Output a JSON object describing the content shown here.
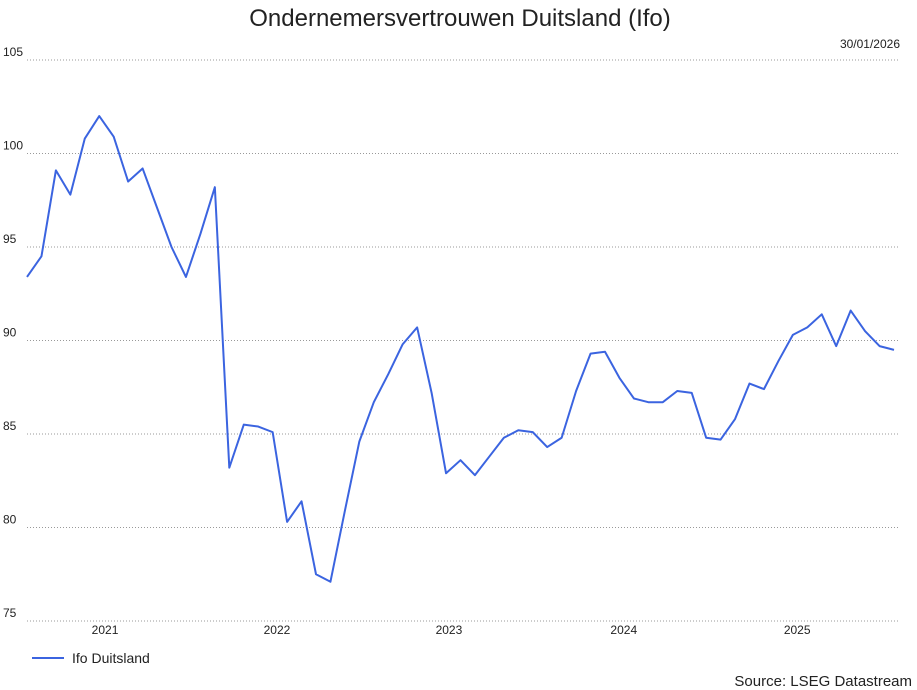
{
  "chart_data": {
    "type": "line",
    "title": "Ondernemersvertrouwen Duitsland (Ifo)",
    "date": "30/01/2026",
    "source": "Source: LSEG Datastream",
    "x": [
      0,
      1,
      2,
      3,
      4,
      5,
      6,
      7,
      8,
      9,
      10,
      11,
      12,
      13,
      14,
      15,
      16,
      17,
      18,
      19,
      20,
      21,
      22,
      23,
      24,
      25,
      26,
      27,
      28,
      29,
      30,
      31,
      32,
      33,
      34,
      35,
      36,
      37,
      38,
      39,
      40,
      41,
      42,
      43,
      44,
      45,
      46,
      47,
      48,
      49,
      50,
      51,
      52,
      53,
      54,
      55,
      56,
      57,
      58,
      59,
      60
    ],
    "series": [
      {
        "name": "Ifo Duitsland",
        "color": "#3b64e0",
        "values": [
          93.4,
          94.5,
          99.1,
          97.8,
          100.8,
          102.0,
          100.9,
          98.5,
          99.2,
          97.1,
          95.0,
          93.4,
          95.7,
          98.2,
          83.2,
          85.5,
          85.4,
          85.1,
          80.3,
          81.4,
          77.5,
          77.1,
          80.9,
          84.6,
          86.7,
          88.2,
          89.8,
          90.7,
          87.2,
          82.9,
          83.6,
          82.8,
          83.8,
          84.8,
          85.2,
          85.1,
          84.3,
          84.8,
          87.3,
          89.3,
          89.4,
          88.0,
          86.9,
          86.7,
          86.7,
          87.3,
          87.2,
          84.8,
          84.7,
          85.8,
          87.7,
          87.4,
          88.9,
          90.3,
          90.7,
          91.4,
          89.7,
          91.6,
          90.5,
          89.7,
          89.5
        ]
      }
    ],
    "xlim": [
      0,
      60
    ],
    "xticks": [
      {
        "value": 5.4,
        "label": "2021"
      },
      {
        "value": 17.3,
        "label": "2022"
      },
      {
        "value": 29.2,
        "label": "2023"
      },
      {
        "value": 41.3,
        "label": "2024"
      },
      {
        "value": 53.3,
        "label": "2025"
      }
    ],
    "ylim": [
      75,
      105
    ],
    "yticks": [
      75,
      80,
      85,
      90,
      95,
      100,
      105
    ],
    "grid": true
  }
}
